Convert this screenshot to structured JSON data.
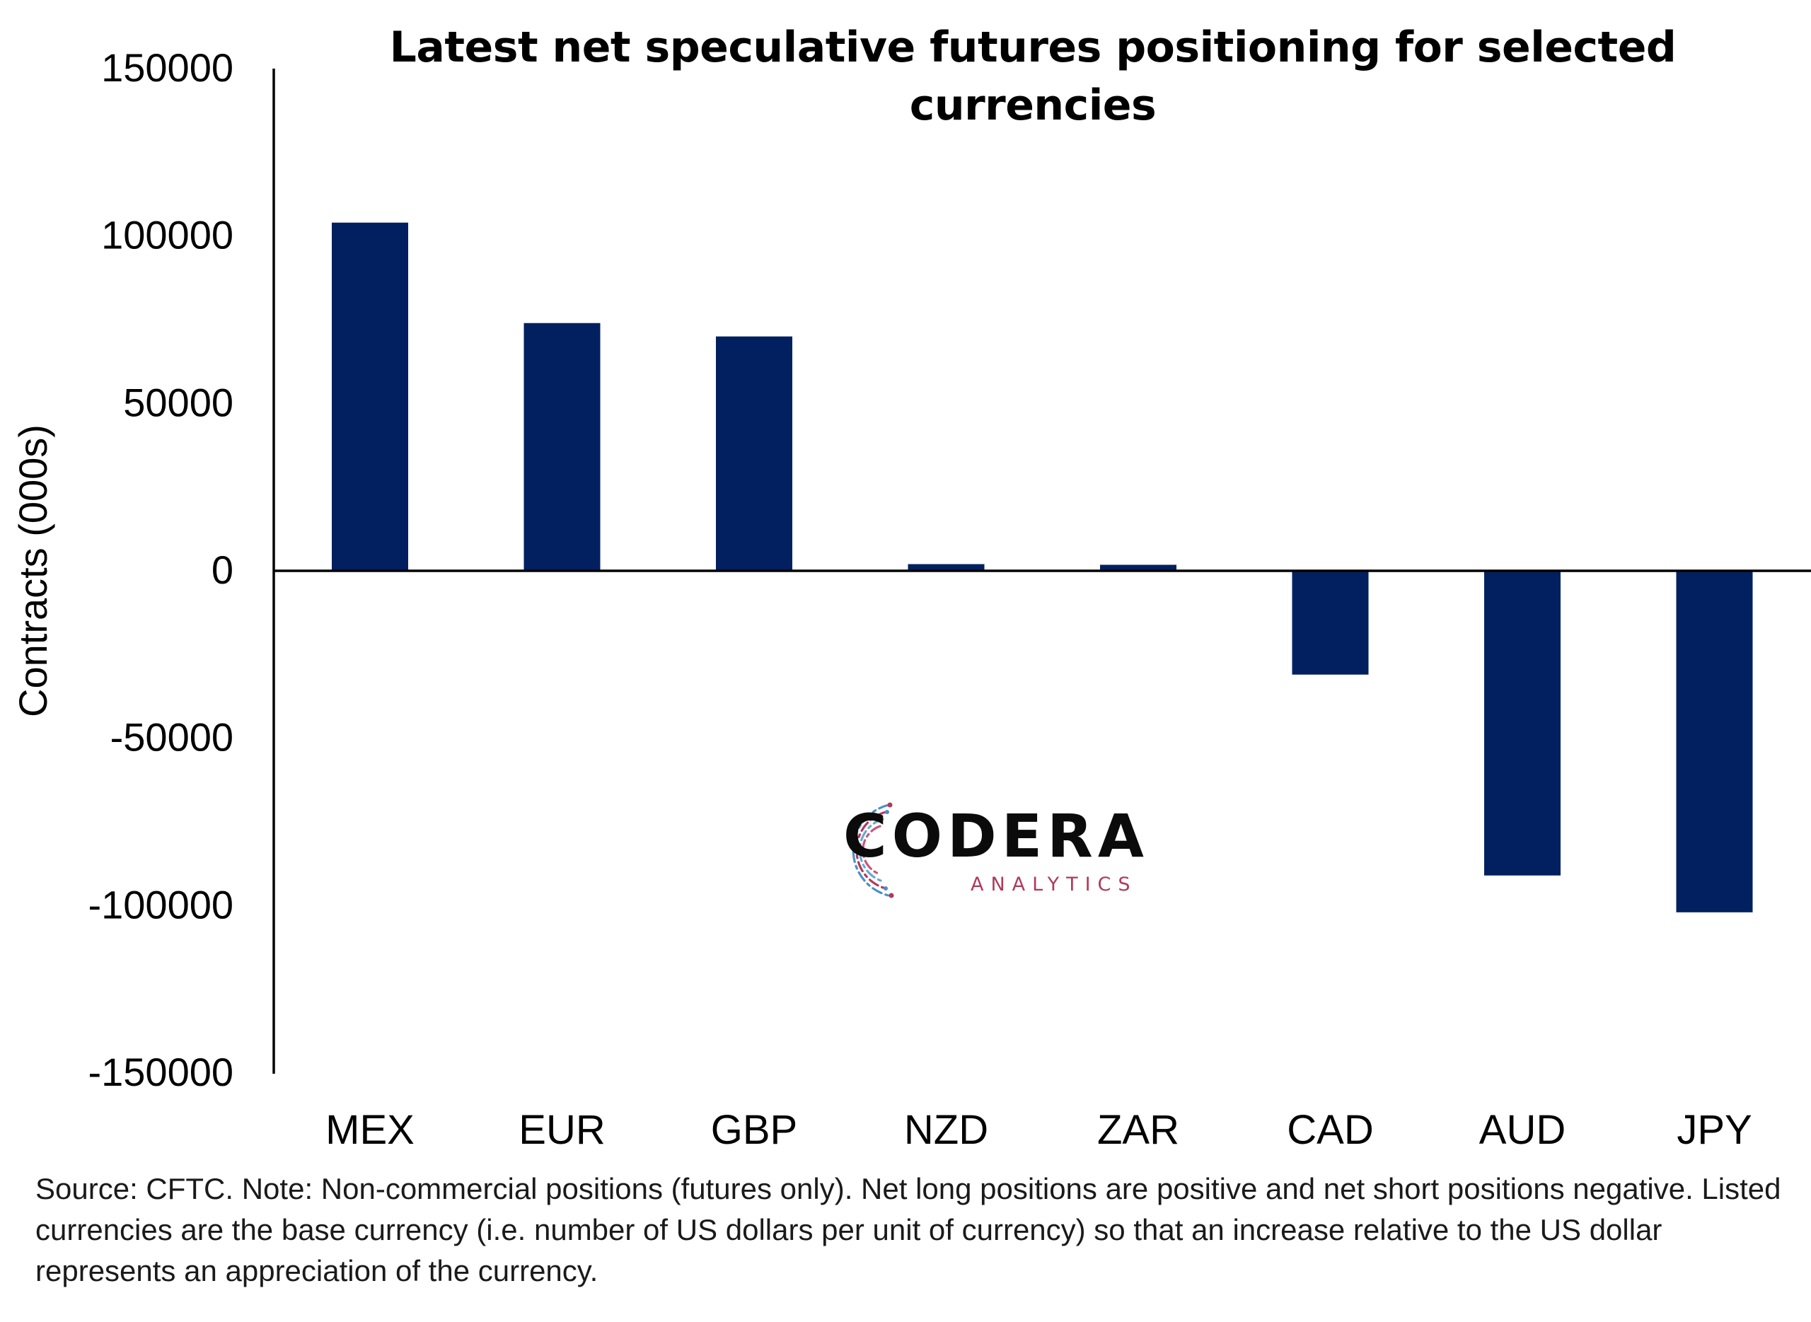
{
  "chart_data": {
    "type": "bar",
    "title": "Latest net speculative futures positioning for selected currencies",
    "ylabel": "Contracts (000s)",
    "xlabel": "",
    "ylim": [
      -150000,
      150000
    ],
    "yticks": [
      150000,
      100000,
      50000,
      0,
      -50000,
      -100000,
      -150000
    ],
    "ytick_labels": [
      "150000",
      "100000",
      "50000",
      "0",
      "-50000",
      "-100000",
      "-150000"
    ],
    "categories": [
      "MEX",
      "EUR",
      "GBP",
      "NZD",
      "ZAR",
      "CAD",
      "AUD",
      "JPY"
    ],
    "values": [
      104000,
      74000,
      70000,
      2000,
      1800,
      -31000,
      -91000,
      -102000
    ],
    "bar_color": "#022060",
    "grid": false,
    "legend": "none"
  },
  "footnote": "Source: CFTC. Note: Non-commercial positions (futures only). Net long positions are positive and net short positions negative. Listed currencies are the base currency (i.e. number of US dollars per unit of currency) so that an increase relative to the US dollar represents an appreciation of the currency.",
  "logo": {
    "name": "CODERA",
    "tagline": "ANALYTICS",
    "colors": [
      "#b03a5b",
      "#4a8fc4"
    ]
  }
}
